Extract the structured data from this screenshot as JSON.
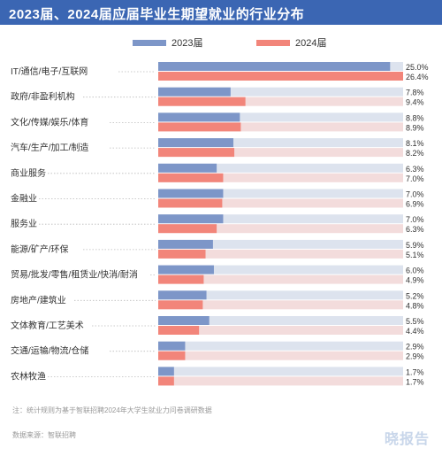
{
  "title": "2023届、2024届应届毕业生期望就业的行业分布",
  "colors": {
    "series_2023": "#7d96c8",
    "series_2024": "#f2857a",
    "track_2023": "#dde3ee",
    "track_2024": "#f3dcdc",
    "title_bg": "#3b66b3"
  },
  "chart_data": {
    "type": "bar",
    "orientation": "horizontal",
    "title": "2023届、2024届应届毕业生期望就业的行业分布",
    "categories": [
      "IT/通信/电子/互联网",
      "政府/非盈利机构",
      "文化/传媒/娱乐/体育",
      "汽车/生产/加工/制造",
      "商业服务",
      "金融业",
      "服务业",
      "能源/矿产/环保",
      "贸易/批发/零售/租赁业/快消/耐消",
      "房地产/建筑业",
      "文体教育/工艺美术",
      "交通/运输/物流/仓储",
      "农林牧渔"
    ],
    "series": [
      {
        "name": "2023届",
        "values": [
          25.0,
          7.8,
          8.8,
          8.1,
          6.3,
          7.0,
          7.0,
          5.9,
          6.0,
          5.2,
          5.5,
          2.9,
          1.7
        ]
      },
      {
        "name": "2024届",
        "values": [
          26.4,
          9.4,
          8.9,
          8.2,
          7.0,
          6.9,
          6.3,
          5.1,
          4.9,
          4.8,
          4.4,
          2.9,
          1.7
        ]
      }
    ],
    "value_labels": [
      [
        "25.0%",
        "7.8%",
        "8.8%",
        "8.1%",
        "6.3%",
        "7.0%",
        "7.0%",
        "5.9%",
        "6.0%",
        "5.2%",
        "5.5%",
        "2.9%",
        "1.7%"
      ],
      [
        "26.4%",
        "9.4%",
        "8.9%",
        "8.2%",
        "7.0%",
        "6.9%",
        "6.3%",
        "5.1%",
        "4.9%",
        "4.8%",
        "4.4%",
        "2.9%",
        "1.7%"
      ]
    ],
    "unit": "%",
    "legend_position": "top",
    "grid": false
  },
  "footnote": "注：统计规则为基于智联招聘2024年大学生就业力问卷调研数据",
  "source": "数据来源：智联招聘",
  "brand": "晓报告"
}
